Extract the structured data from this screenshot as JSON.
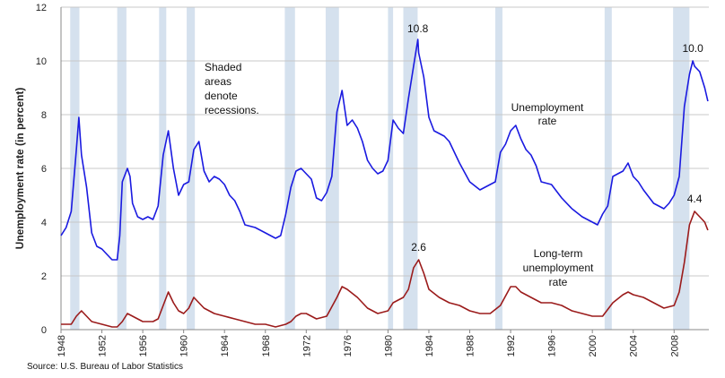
{
  "source": "Source: U.S. Bureau of Labor Statistics",
  "chart_data": {
    "type": "line",
    "title": "",
    "xlabel": "",
    "ylabel": "Unemployment rate (in percent)",
    "xlim": [
      1948,
      2011.4
    ],
    "ylim": [
      0,
      12
    ],
    "yticks": [
      0,
      2,
      4,
      6,
      8,
      10,
      12
    ],
    "xticks": [
      1948,
      1952,
      1956,
      1960,
      1964,
      1968,
      1972,
      1976,
      1980,
      1984,
      1988,
      1992,
      1996,
      2000,
      2004,
      2008
    ],
    "grid": "horizontal",
    "recessions": [
      [
        1948.9,
        1949.8
      ],
      [
        1953.5,
        1954.4
      ],
      [
        1957.6,
        1958.3
      ],
      [
        1960.3,
        1961.1
      ],
      [
        1969.9,
        1970.9
      ],
      [
        1973.9,
        1975.2
      ],
      [
        1980.0,
        1980.5
      ],
      [
        1981.5,
        1982.9
      ],
      [
        1990.5,
        1991.2
      ],
      [
        2001.2,
        2001.9
      ],
      [
        2007.9,
        2009.5
      ]
    ],
    "series": [
      {
        "name": "Unemployment rate",
        "color": "#1a1ae0",
        "x": [
          1948.0,
          1948.5,
          1949.0,
          1949.5,
          1949.75,
          1950.0,
          1950.5,
          1951.0,
          1951.5,
          1952.0,
          1952.5,
          1953.0,
          1953.5,
          1953.75,
          1954.0,
          1954.5,
          1954.75,
          1955.0,
          1955.5,
          1956.0,
          1956.5,
          1957.0,
          1957.5,
          1958.0,
          1958.5,
          1959.0,
          1959.5,
          1960.0,
          1960.5,
          1961.0,
          1961.5,
          1962.0,
          1962.5,
          1963.0,
          1963.5,
          1964.0,
          1964.5,
          1965.0,
          1965.5,
          1966.0,
          1967.0,
          1968.0,
          1969.0,
          1969.5,
          1970.0,
          1970.5,
          1971.0,
          1971.5,
          1972.0,
          1972.5,
          1973.0,
          1973.5,
          1974.0,
          1974.5,
          1975.0,
          1975.5,
          1976.0,
          1976.5,
          1977.0,
          1977.5,
          1978.0,
          1978.5,
          1979.0,
          1979.5,
          1980.0,
          1980.5,
          1981.0,
          1981.5,
          1982.0,
          1982.5,
          1982.92,
          1983.0,
          1983.5,
          1984.0,
          1984.5,
          1985.0,
          1985.5,
          1986.0,
          1987.0,
          1988.0,
          1989.0,
          1990.0,
          1990.5,
          1991.0,
          1991.5,
          1992.0,
          1992.5,
          1993.0,
          1993.5,
          1994.0,
          1994.5,
          1995.0,
          1996.0,
          1997.0,
          1998.0,
          1999.0,
          2000.0,
          2000.5,
          2001.0,
          2001.5,
          2002.0,
          2002.5,
          2003.0,
          2003.5,
          2004.0,
          2004.5,
          2005.0,
          2006.0,
          2007.0,
          2007.5,
          2008.0,
          2008.5,
          2009.0,
          2009.5,
          2009.83,
          2010.0,
          2010.5,
          2011.0,
          2011.3
        ],
        "values": [
          3.5,
          3.8,
          4.4,
          6.7,
          7.9,
          6.5,
          5.3,
          3.6,
          3.1,
          3.0,
          2.8,
          2.6,
          2.6,
          3.5,
          5.5,
          6.0,
          5.7,
          4.7,
          4.2,
          4.1,
          4.2,
          4.1,
          4.6,
          6.5,
          7.4,
          6.0,
          5.0,
          5.4,
          5.5,
          6.7,
          7.0,
          5.9,
          5.5,
          5.7,
          5.6,
          5.4,
          5.0,
          4.8,
          4.4,
          3.9,
          3.8,
          3.6,
          3.4,
          3.5,
          4.3,
          5.3,
          5.9,
          6.0,
          5.8,
          5.6,
          4.9,
          4.8,
          5.1,
          5.7,
          8.1,
          8.9,
          7.6,
          7.8,
          7.5,
          7.0,
          6.3,
          6.0,
          5.8,
          5.9,
          6.3,
          7.8,
          7.5,
          7.3,
          8.6,
          9.8,
          10.8,
          10.3,
          9.4,
          7.9,
          7.4,
          7.3,
          7.2,
          7.0,
          6.2,
          5.5,
          5.2,
          5.4,
          5.5,
          6.6,
          6.9,
          7.4,
          7.6,
          7.1,
          6.7,
          6.5,
          6.1,
          5.5,
          5.4,
          4.9,
          4.5,
          4.2,
          4.0,
          3.9,
          4.3,
          4.6,
          5.7,
          5.8,
          5.9,
          6.2,
          5.7,
          5.5,
          5.2,
          4.7,
          4.5,
          4.7,
          5.0,
          5.7,
          8.3,
          9.5,
          10.0,
          9.8,
          9.6,
          9.0,
          8.5
        ]
      },
      {
        "name": "Long-term unemployment rate",
        "color": "#9b1b1b",
        "x": [
          1948.0,
          1949.0,
          1949.5,
          1950.0,
          1950.5,
          1951.0,
          1952.0,
          1953.0,
          1953.5,
          1954.0,
          1954.5,
          1955.0,
          1955.5,
          1956.0,
          1957.0,
          1957.5,
          1958.0,
          1958.5,
          1959.0,
          1959.5,
          1960.0,
          1960.5,
          1961.0,
          1961.5,
          1962.0,
          1963.0,
          1964.0,
          1965.0,
          1966.0,
          1967.0,
          1968.0,
          1969.0,
          1970.0,
          1970.5,
          1971.0,
          1971.5,
          1972.0,
          1973.0,
          1974.0,
          1975.0,
          1975.5,
          1976.0,
          1977.0,
          1978.0,
          1979.0,
          1980.0,
          1980.5,
          1981.0,
          1981.5,
          1982.0,
          1982.5,
          1983.0,
          1983.5,
          1984.0,
          1985.0,
          1986.0,
          1987.0,
          1988.0,
          1989.0,
          1990.0,
          1991.0,
          1992.0,
          1992.5,
          1993.0,
          1994.0,
          1995.0,
          1996.0,
          1997.0,
          1998.0,
          1999.0,
          2000.0,
          2001.0,
          2002.0,
          2003.0,
          2003.5,
          2004.0,
          2005.0,
          2006.0,
          2007.0,
          2008.0,
          2008.5,
          2009.0,
          2009.5,
          2010.0,
          2010.5,
          2011.0,
          2011.3
        ],
        "values": [
          0.2,
          0.2,
          0.5,
          0.7,
          0.5,
          0.3,
          0.2,
          0.1,
          0.1,
          0.3,
          0.6,
          0.5,
          0.4,
          0.3,
          0.3,
          0.4,
          0.9,
          1.4,
          1.0,
          0.7,
          0.6,
          0.8,
          1.2,
          1.0,
          0.8,
          0.6,
          0.5,
          0.4,
          0.3,
          0.2,
          0.2,
          0.1,
          0.2,
          0.3,
          0.5,
          0.6,
          0.6,
          0.4,
          0.5,
          1.2,
          1.6,
          1.5,
          1.2,
          0.8,
          0.6,
          0.7,
          1.0,
          1.1,
          1.2,
          1.5,
          2.3,
          2.6,
          2.1,
          1.5,
          1.2,
          1.0,
          0.9,
          0.7,
          0.6,
          0.6,
          0.9,
          1.6,
          1.6,
          1.4,
          1.2,
          1.0,
          1.0,
          0.9,
          0.7,
          0.6,
          0.5,
          0.5,
          1.0,
          1.3,
          1.4,
          1.3,
          1.2,
          1.0,
          0.8,
          0.9,
          1.4,
          2.5,
          3.9,
          4.4,
          4.2,
          4.0,
          3.7
        ]
      }
    ],
    "annotations": {
      "shaded": [
        "Shaded",
        "areas",
        "denote",
        "recessions."
      ],
      "unemp_label": [
        "Unemployment",
        "rate"
      ],
      "lt_label": [
        "Long-term",
        "unemployment",
        "rate"
      ],
      "peak_1983": "10.8",
      "peak_2009": "10.0",
      "peak_lt_1983": "2.6",
      "peak_lt_2010": "4.4"
    }
  }
}
